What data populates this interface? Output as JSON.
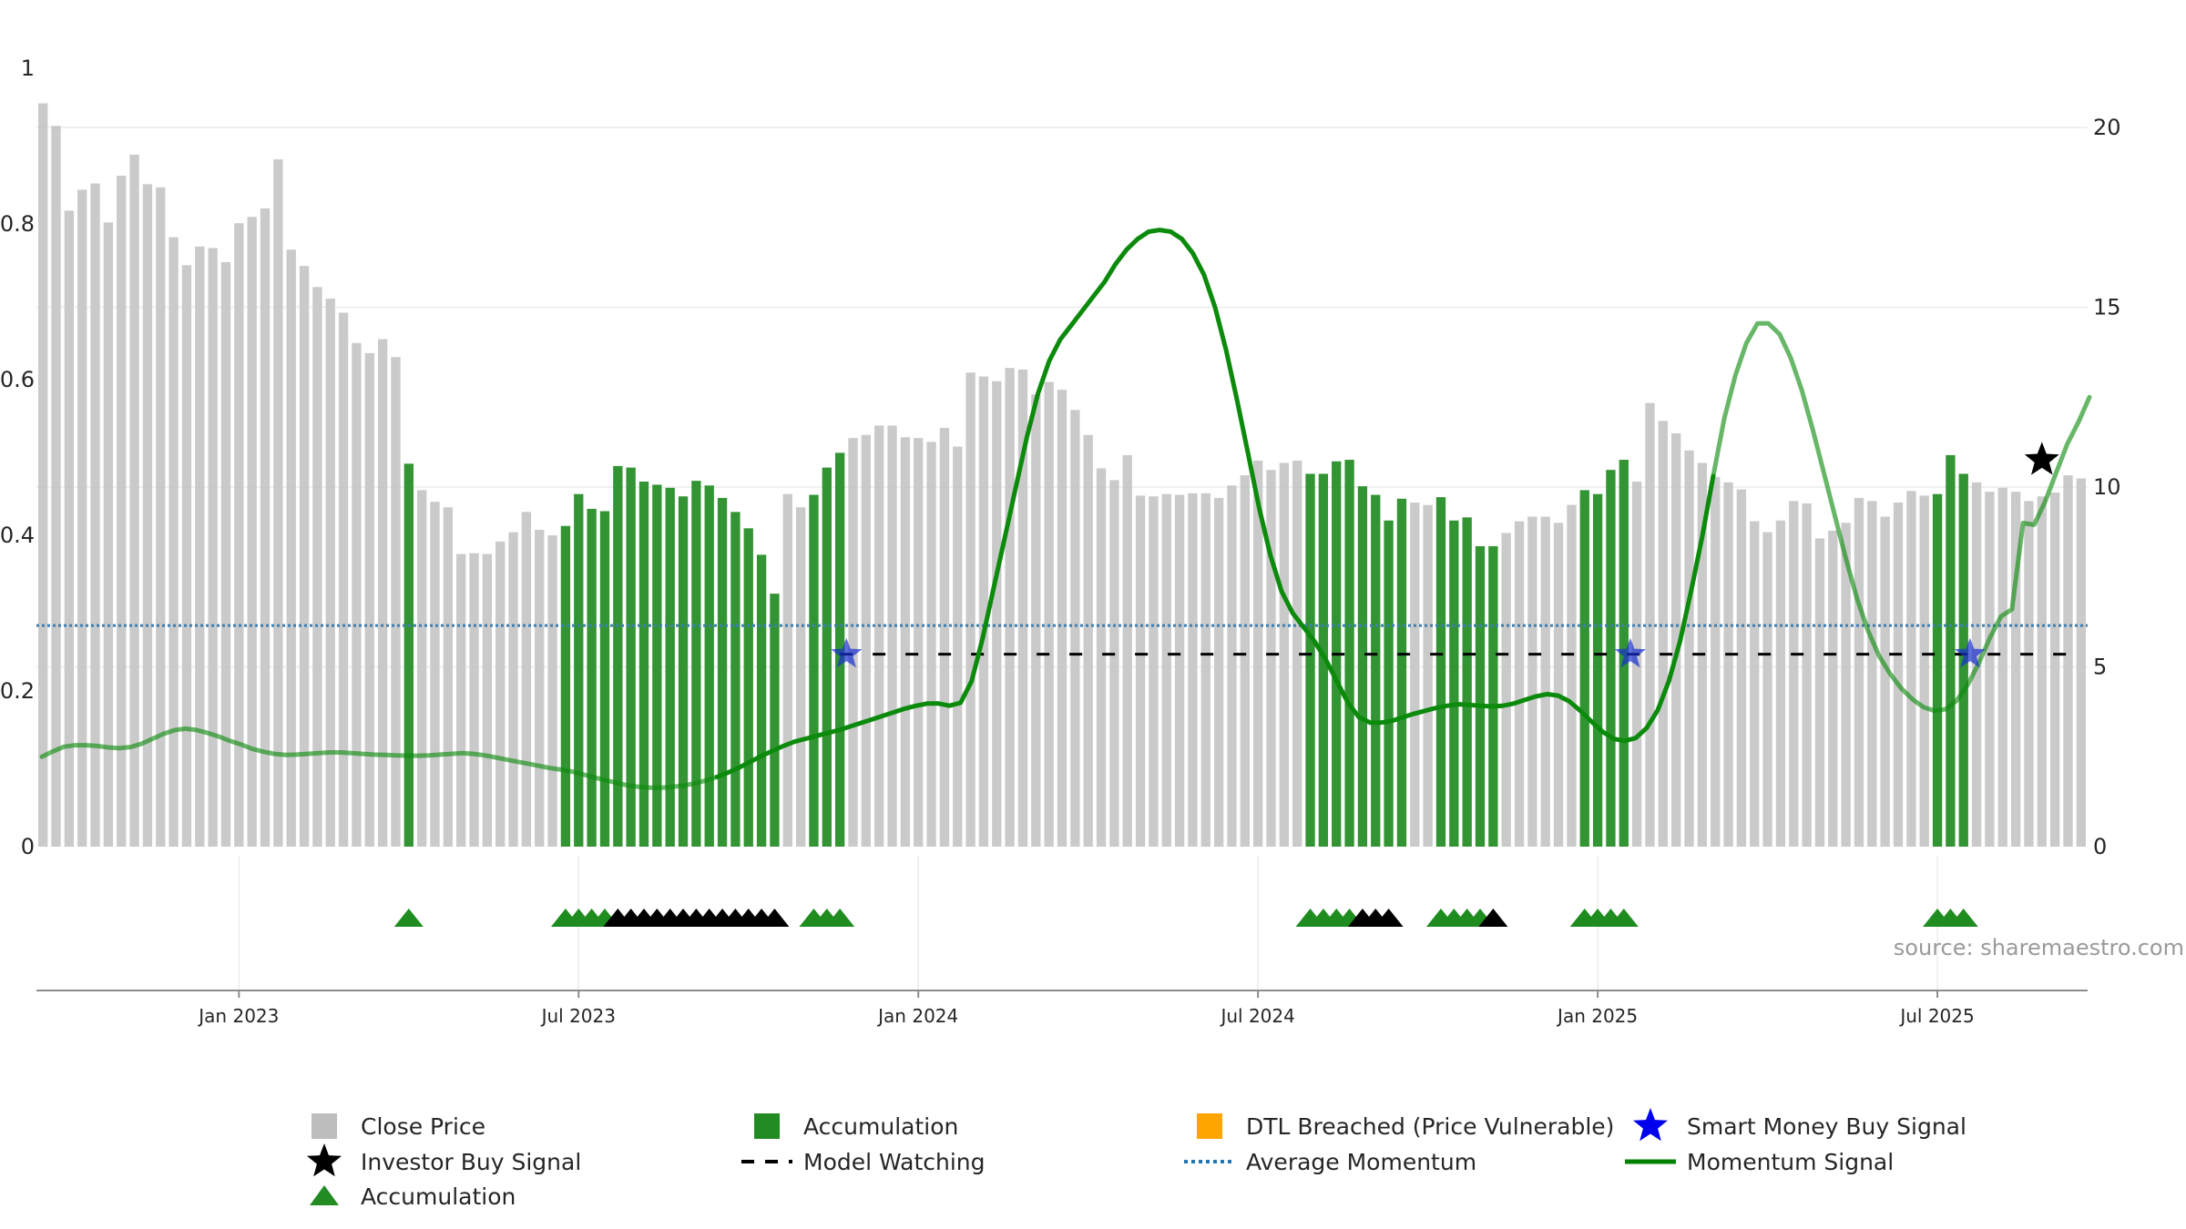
{
  "chart_data": {
    "type": "bar",
    "y_left": {
      "ticks": [
        "0",
        "0.2",
        "0.4",
        "0.6",
        "0.8",
        "1"
      ],
      "range": [
        0,
        1
      ]
    },
    "y_right": {
      "ticks": [
        "0",
        "5",
        "10",
        "15",
        "20"
      ],
      "range": [
        0,
        20
      ]
    },
    "x_ticks": [
      "Jan 2023",
      "Jul 2023",
      "Jan 2024",
      "Jul 2024",
      "Jan 2025",
      "Jul 2025"
    ],
    "x_tick_weeks": [
      15,
      41,
      67,
      93,
      119,
      145
    ],
    "source": "source: sharemaestro.com",
    "close_price": [
      0.955,
      0.926,
      0.817,
      0.844,
      0.852,
      0.802,
      0.862,
      0.889,
      0.851,
      0.847,
      0.783,
      0.747,
      0.771,
      0.769,
      0.751,
      0.801,
      0.809,
      0.82,
      0.883,
      0.767,
      0.746,
      0.719,
      0.704,
      0.686,
      0.647,
      0.634,
      0.652,
      0.629,
      0.492,
      0.458,
      0.443,
      0.436,
      0.376,
      0.377,
      0.376,
      0.392,
      0.404,
      0.43,
      0.407,
      0.4,
      0.412,
      0.453,
      0.434,
      0.431,
      0.489,
      0.487,
      0.469,
      0.465,
      0.461,
      0.45,
      0.47,
      0.464,
      0.448,
      0.43,
      0.409,
      0.375,
      0.325,
      0.453,
      0.436,
      0.452,
      0.487,
      0.506,
      0.525,
      0.529,
      0.541,
      0.541,
      0.526,
      0.525,
      0.52,
      0.538,
      0.514,
      0.609,
      0.604,
      0.598,
      0.615,
      0.613,
      0.581,
      0.597,
      0.587,
      0.561,
      0.529,
      0.486,
      0.471,
      0.503,
      0.451,
      0.45,
      0.453,
      0.452,
      0.454,
      0.454,
      0.448,
      0.464,
      0.477,
      0.496,
      0.484,
      0.493,
      0.496,
      0.479,
      0.479,
      0.495,
      0.497,
      0.463,
      0.452,
      0.419,
      0.447,
      0.442,
      0.439,
      0.449,
      0.419,
      0.423,
      0.386,
      0.386,
      0.403,
      0.418,
      0.424,
      0.424,
      0.416,
      0.439,
      0.458,
      0.453,
      0.484,
      0.497,
      0.469,
      0.57,
      0.547,
      0.531,
      0.509,
      0.493,
      0.475,
      0.468,
      0.459,
      0.418,
      0.404,
      0.419,
      0.444,
      0.441,
      0.396,
      0.406,
      0.416,
      0.448,
      0.444,
      0.424,
      0.442,
      0.457,
      0.451,
      0.453,
      0.503,
      0.479,
      0.468,
      0.456,
      0.461,
      0.456,
      0.444,
      0.45,
      0.455,
      0.477,
      0.473
    ],
    "accumulation_weeks": [
      28,
      40,
      41,
      42,
      43,
      44,
      45,
      46,
      47,
      48,
      49,
      50,
      51,
      52,
      53,
      54,
      55,
      56,
      59,
      60,
      61,
      97,
      98,
      99,
      100,
      101,
      102,
      103,
      104,
      107,
      108,
      109,
      110,
      111,
      118,
      119,
      120,
      121,
      145,
      146,
      147
    ],
    "accumulation_markers_green": [
      28,
      40,
      41,
      42,
      43,
      59,
      60,
      61,
      97,
      98,
      99,
      100,
      107,
      108,
      109,
      110,
      118,
      119,
      120,
      121,
      145,
      146,
      147
    ],
    "investor_markers_black": [
      44,
      45,
      46,
      47,
      48,
      49,
      50,
      51,
      52,
      53,
      54,
      55,
      56,
      101,
      102,
      103,
      111
    ],
    "momentum_signal": [
      2.5,
      2.65,
      2.78,
      2.82,
      2.82,
      2.8,
      2.76,
      2.74,
      2.77,
      2.86,
      3.0,
      3.14,
      3.24,
      3.28,
      3.24,
      3.16,
      3.06,
      2.94,
      2.84,
      2.72,
      2.64,
      2.58,
      2.55,
      2.56,
      2.58,
      2.6,
      2.62,
      2.62,
      2.6,
      2.58,
      2.56,
      2.55,
      2.54,
      2.53,
      2.53,
      2.54,
      2.56,
      2.58,
      2.6,
      2.58,
      2.54,
      2.48,
      2.42,
      2.36,
      2.3,
      2.24,
      2.18,
      2.14,
      2.08,
      2.0,
      1.92,
      1.84,
      1.77,
      1.7,
      1.66,
      1.64,
      1.64,
      1.66,
      1.7,
      1.76,
      1.84,
      1.94,
      2.06,
      2.2,
      2.36,
      2.52,
      2.66,
      2.8,
      2.92,
      3.0,
      3.08,
      3.16,
      3.24,
      3.34,
      3.44,
      3.54,
      3.64,
      3.74,
      3.84,
      3.92,
      3.98,
      3.98,
      3.92,
      4.0,
      4.6,
      5.8,
      7.2,
      8.6,
      10.0,
      11.4,
      12.6,
      13.5,
      14.1,
      14.5,
      14.9,
      15.3,
      15.7,
      16.2,
      16.6,
      16.9,
      17.1,
      17.15,
      17.1,
      16.9,
      16.5,
      15.9,
      15.0,
      13.8,
      12.4,
      10.9,
      9.4,
      8.1,
      7.1,
      6.5,
      6.1,
      5.7,
      5.2,
      4.6,
      4.0,
      3.6,
      3.45,
      3.45,
      3.5,
      3.6,
      3.7,
      3.78,
      3.86,
      3.92,
      3.96,
      3.94,
      3.92,
      3.9,
      3.92,
      3.98,
      4.08,
      4.18,
      4.24,
      4.2,
      4.04,
      3.78,
      3.48,
      3.2,
      3.0,
      2.94,
      3.02,
      3.3,
      3.8,
      4.6,
      5.7,
      7.1,
      8.6,
      10.3,
      11.9,
      13.1,
      14.0,
      14.55,
      14.55,
      14.25,
      13.6,
      12.7,
      11.6,
      10.4,
      9.2,
      8.0,
      6.9,
      6.0,
      5.3,
      4.8,
      4.4,
      4.1,
      3.88,
      3.78,
      3.82,
      4.06,
      4.5,
      5.1,
      5.8,
      6.4,
      6.6,
      9.0,
      8.95,
      9.6,
      10.4,
      11.2,
      11.8,
      12.5
    ],
    "momentum_dark_index_ranges": [
      [
        61,
        150
      ],
      [
        217,
        258
      ]
    ],
    "average_momentum": 6.15,
    "model_watching": {
      "from_week": 61,
      "to_week": 156,
      "value": 5.35
    },
    "smart_money_buy_signal_weeks": [
      61.5,
      121.5,
      147.5
    ],
    "smart_money_buy_signal_value": 5.35,
    "investor_buy_signal": {
      "week": 153,
      "value": 10.75
    },
    "legend": [
      {
        "label": "Close Price",
        "symbol": "square",
        "color": "#bdbdbd"
      },
      {
        "label": "Accumulation",
        "symbol": "square",
        "color": "#228b22"
      },
      {
        "label": "DTL Breached (Price Vulnerable)",
        "symbol": "square",
        "color": "#ffa500"
      },
      {
        "label": "Smart Money Buy Signal",
        "symbol": "star",
        "color": "#0000ee"
      },
      {
        "label": "Investor Buy Signal",
        "symbol": "star",
        "color": "#000000"
      },
      {
        "label": "Model Watching",
        "symbol": "dash",
        "color": "#000000"
      },
      {
        "label": "Average Momentum",
        "symbol": "dot",
        "color": "#1f77b4"
      },
      {
        "label": "Momentum Signal",
        "symbol": "line",
        "color": "#008000"
      },
      {
        "label": "Accumulation",
        "symbol": "triangle",
        "color": "#228b22"
      }
    ]
  }
}
